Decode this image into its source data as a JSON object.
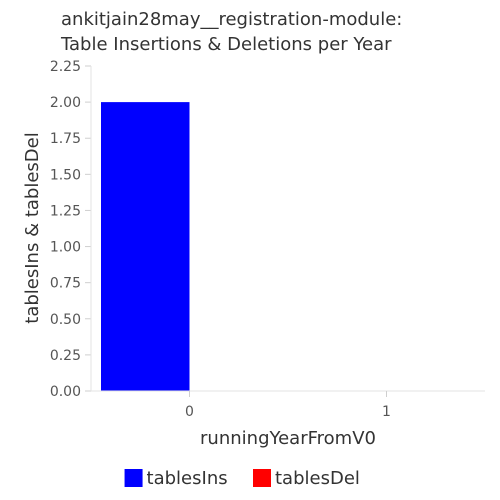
{
  "chart_data": {
    "type": "bar",
    "title_lines": [
      "ankitjain28may__registration-module:",
      "Table Insertions & Deletions per Year"
    ],
    "xlabel": "runningYearFromV0",
    "ylabel": "tablesIns & tablesDel",
    "categories": [
      "0",
      "1"
    ],
    "yticks": [
      "0.00",
      "0.25",
      "0.50",
      "0.75",
      "1.00",
      "1.25",
      "1.50",
      "1.75",
      "2.00",
      "2.25"
    ],
    "ylim": [
      0,
      2.25
    ],
    "grid": false,
    "legend_position": "bottom",
    "series": [
      {
        "name": "tablesIns",
        "color": "#0000ff",
        "values": [
          2,
          0
        ]
      },
      {
        "name": "tablesDel",
        "color": "#ff0000",
        "values": [
          0,
          0
        ]
      }
    ]
  }
}
